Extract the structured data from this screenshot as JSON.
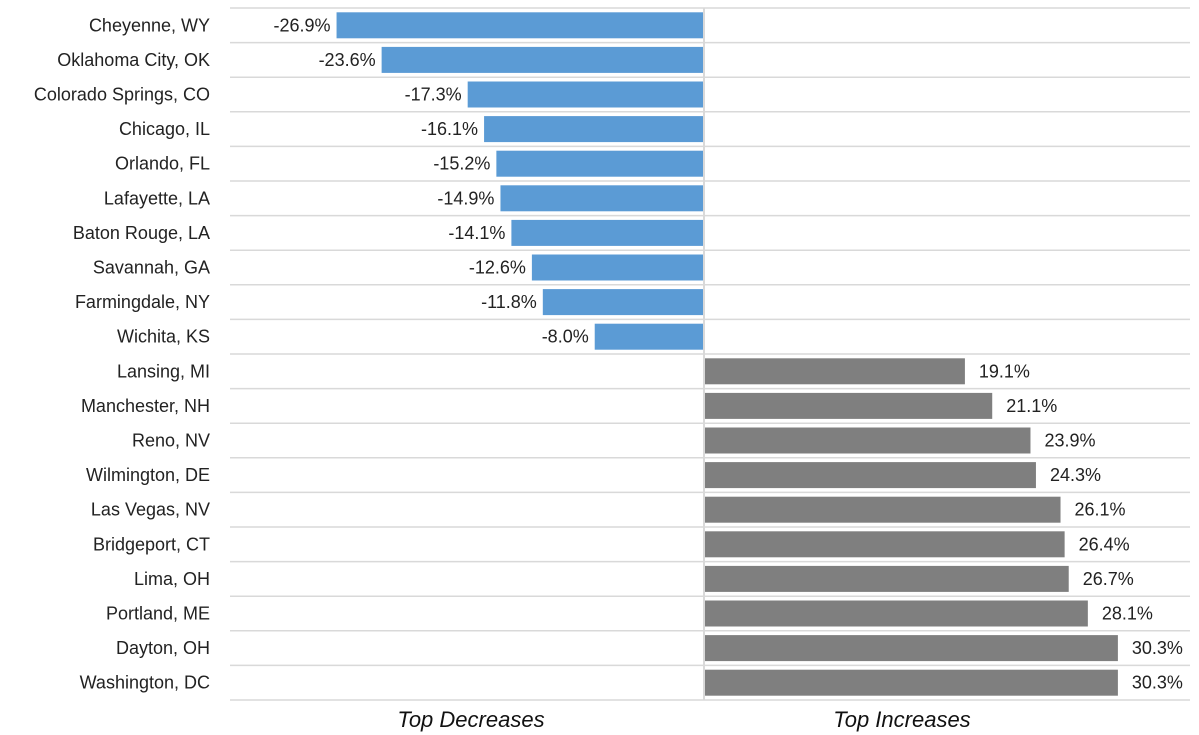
{
  "chart_data": {
    "type": "bar",
    "orientation": "horizontal",
    "categories": [
      "Cheyenne, WY",
      "Oklahoma City, OK",
      "Colorado Springs, CO",
      "Chicago, IL",
      "Orlando, FL",
      "Lafayette, LA",
      "Baton Rouge, LA",
      "Savannah, GA",
      "Farmingdale, NY",
      "Wichita, KS",
      "Lansing, MI",
      "Manchester, NH",
      "Reno, NV",
      "Wilmington, DE",
      "Las Vegas, NV",
      "Bridgeport, CT",
      "Lima, OH",
      "Portland, ME",
      "Dayton, OH",
      "Washington, DC"
    ],
    "values": [
      -26.9,
      -23.6,
      -17.3,
      -16.1,
      -15.2,
      -14.9,
      -14.1,
      -12.6,
      -11.8,
      -8.0,
      19.1,
      21.1,
      23.9,
      24.3,
      26.1,
      26.4,
      26.7,
      28.1,
      30.3,
      30.3
    ],
    "value_labels": [
      "-26.9%",
      "-23.6%",
      "-17.3%",
      "-16.1%",
      "-15.2%",
      "-14.9%",
      "-14.1%",
      "-12.6%",
      "-11.8%",
      "-8.0%",
      "19.1%",
      "21.1%",
      "23.9%",
      "24.3%",
      "26.1%",
      "26.4%",
      "26.7%",
      "28.1%",
      "30.3%",
      "30.3%"
    ],
    "xlim": [
      -35,
      35
    ],
    "grid": true,
    "section_labels": {
      "decreases": "Top Decreases",
      "increases": "Top Increases"
    },
    "colors": {
      "decrease": "#5b9bd5",
      "increase": "#7f7f7f",
      "grid": "#d9d9d9",
      "text": "#222222"
    }
  }
}
